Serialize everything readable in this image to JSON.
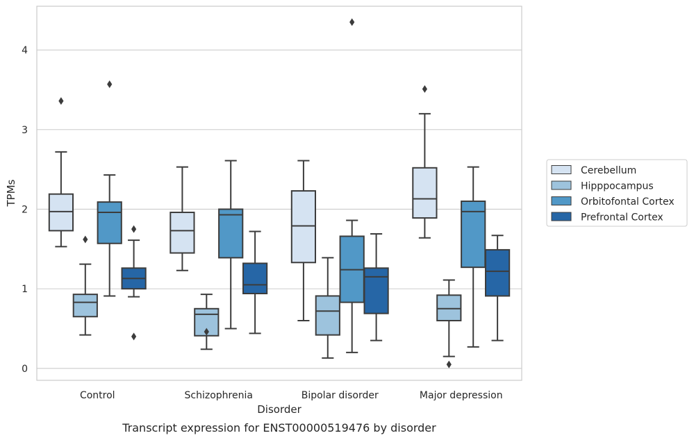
{
  "chart_data": {
    "type": "boxplot",
    "caption": "Transcript expression for ENST00000519476 by disorder",
    "xlabel": "Disorder",
    "ylabel": "TPMs",
    "ylim": [
      -0.15,
      4.55
    ],
    "yticks": [
      0,
      1,
      2,
      3,
      4
    ],
    "grid": true,
    "legend_position": "right",
    "categories": [
      "Control",
      "Schizophrenia",
      "Bipolar disorder",
      "Major depression"
    ],
    "series": [
      {
        "name": "Cerebellum",
        "color": "#d5e3f2",
        "boxes": [
          {
            "whisker_low": 1.53,
            "q1": 1.73,
            "median": 1.97,
            "q3": 2.19,
            "whisker_high": 2.72,
            "outliers": [
              3.36
            ]
          },
          {
            "whisker_low": 1.23,
            "q1": 1.45,
            "median": 1.73,
            "q3": 1.96,
            "whisker_high": 2.53,
            "outliers": []
          },
          {
            "whisker_low": 0.6,
            "q1": 1.33,
            "median": 1.79,
            "q3": 2.23,
            "whisker_high": 2.61,
            "outliers": []
          },
          {
            "whisker_low": 1.64,
            "q1": 1.89,
            "median": 2.13,
            "q3": 2.52,
            "whisker_high": 3.2,
            "outliers": [
              3.51
            ]
          }
        ]
      },
      {
        "name": "Hipppocampus",
        "color": "#9dc3dd",
        "boxes": [
          {
            "whisker_low": 0.42,
            "q1": 0.65,
            "median": 0.83,
            "q3": 0.93,
            "whisker_high": 1.31,
            "outliers": [
              1.62
            ]
          },
          {
            "whisker_low": 0.24,
            "q1": 0.41,
            "median": 0.68,
            "q3": 0.75,
            "whisker_high": 0.93,
            "outliers": [
              0.46
            ]
          },
          {
            "whisker_low": 0.13,
            "q1": 0.42,
            "median": 0.72,
            "q3": 0.91,
            "whisker_high": 1.39,
            "outliers": []
          },
          {
            "whisker_low": 0.15,
            "q1": 0.6,
            "median": 0.75,
            "q3": 0.92,
            "whisker_high": 1.11,
            "outliers": [
              0.05
            ]
          }
        ]
      },
      {
        "name": "Orbitofontal Cortex",
        "color": "#5198c7",
        "boxes": [
          {
            "whisker_low": 0.91,
            "q1": 1.57,
            "median": 1.96,
            "q3": 2.09,
            "whisker_high": 2.43,
            "outliers": [
              3.57
            ]
          },
          {
            "whisker_low": 0.5,
            "q1": 1.39,
            "median": 1.93,
            "q3": 2.0,
            "whisker_high": 2.61,
            "outliers": []
          },
          {
            "whisker_low": 0.2,
            "q1": 0.83,
            "median": 1.24,
            "q3": 1.66,
            "whisker_high": 1.86,
            "outliers": [
              4.35
            ]
          },
          {
            "whisker_low": 0.27,
            "q1": 1.27,
            "median": 1.97,
            "q3": 2.1,
            "whisker_high": 2.53,
            "outliers": []
          }
        ]
      },
      {
        "name": "Prefrontal Cortex",
        "color": "#2666a6",
        "boxes": [
          {
            "whisker_low": 0.9,
            "q1": 1.0,
            "median": 1.13,
            "q3": 1.26,
            "whisker_high": 1.61,
            "outliers": [
              1.75,
              0.4
            ]
          },
          {
            "whisker_low": 0.44,
            "q1": 0.94,
            "median": 1.05,
            "q3": 1.32,
            "whisker_high": 1.72,
            "outliers": []
          },
          {
            "whisker_low": 0.35,
            "q1": 0.69,
            "median": 1.15,
            "q3": 1.26,
            "whisker_high": 1.69,
            "outliers": []
          },
          {
            "whisker_low": 0.35,
            "q1": 0.91,
            "median": 1.22,
            "q3": 1.49,
            "whisker_high": 1.67,
            "outliers": []
          }
        ]
      }
    ]
  }
}
